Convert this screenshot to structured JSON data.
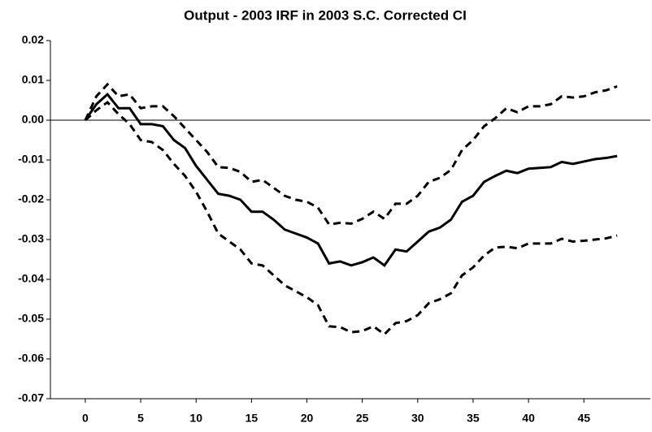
{
  "chart_data": {
    "type": "line",
    "title": "Output - 2003 IRF in 2003 S.C. Corrected CI",
    "x": [
      0,
      1,
      2,
      3,
      4,
      5,
      6,
      7,
      8,
      9,
      10,
      11,
      12,
      13,
      14,
      15,
      16,
      17,
      18,
      19,
      20,
      21,
      22,
      23,
      24,
      25,
      26,
      27,
      28,
      29,
      30,
      31,
      32,
      33,
      34,
      35,
      36,
      37,
      38,
      39,
      40,
      41,
      42,
      43,
      44,
      45,
      46,
      47,
      48
    ],
    "series": [
      {
        "color": "#000000",
        "dashed": false,
        "values": [
          0,
          0.004,
          0.0065,
          0.003,
          0.003,
          -0.001,
          -0.001,
          -0.0015,
          -0.005,
          -0.007,
          -0.0115,
          -0.015,
          -0.0185,
          -0.019,
          -0.02,
          -0.023,
          -0.023,
          -0.025,
          -0.0275,
          -0.0285,
          -0.0295,
          -0.031,
          -0.036,
          -0.0355,
          -0.0365,
          -0.0357,
          -0.0345,
          -0.0365,
          -0.0325,
          -0.033,
          -0.0305,
          -0.028,
          -0.027,
          -0.025,
          -0.0205,
          -0.019,
          -0.0155,
          -0.014,
          -0.0127,
          -0.0133,
          -0.0122,
          -0.012,
          -0.0118,
          -0.0105,
          -0.011,
          -0.0104,
          -0.0098,
          -0.0095,
          -0.009
        ]
      },
      {
        "color": "#000000",
        "dashed": true,
        "values": [
          0,
          0.006,
          0.009,
          0.006,
          0.0065,
          0.003,
          0.0035,
          0.0035,
          0.001,
          -0.002,
          -0.005,
          -0.008,
          -0.0118,
          -0.012,
          -0.013,
          -0.0155,
          -0.015,
          -0.017,
          -0.019,
          -0.02,
          -0.0205,
          -0.022,
          -0.0262,
          -0.0258,
          -0.026,
          -0.0248,
          -0.023,
          -0.0248,
          -0.021,
          -0.021,
          -0.019,
          -0.0155,
          -0.0145,
          -0.0125,
          -0.0075,
          -0.005,
          -0.0015,
          0.0005,
          0.003,
          0.002,
          0.0035,
          0.0035,
          0.004,
          0.006,
          0.0057,
          0.006,
          0.007,
          0.0075,
          0.0085
        ]
      },
      {
        "color": "#000000",
        "dashed": true,
        "values": [
          0,
          0.0025,
          0.0045,
          0.0015,
          -0.001,
          -0.005,
          -0.0055,
          -0.0075,
          -0.011,
          -0.014,
          -0.018,
          -0.023,
          -0.0285,
          -0.0305,
          -0.0325,
          -0.036,
          -0.0365,
          -0.039,
          -0.0415,
          -0.043,
          -0.0445,
          -0.0465,
          -0.0518,
          -0.052,
          -0.0533,
          -0.053,
          -0.0518,
          -0.0538,
          -0.051,
          -0.0505,
          -0.049,
          -0.046,
          -0.045,
          -0.0435,
          -0.039,
          -0.037,
          -0.034,
          -0.032,
          -0.0318,
          -0.0322,
          -0.031,
          -0.031,
          -0.031,
          -0.0298,
          -0.0305,
          -0.0303,
          -0.03,
          -0.0297,
          -0.029
        ]
      }
    ],
    "xlim": [
      -3.15,
      51
    ],
    "xticks": [
      0,
      5,
      10,
      15,
      20,
      25,
      30,
      35,
      40,
      45
    ],
    "ylim": [
      -0.07,
      0.02
    ],
    "yticks": [
      0.02,
      0.01,
      {
        "value": 0,
        "label": "0.00"
      },
      -0.01,
      -0.02,
      -0.03,
      -0.04,
      -0.05,
      -0.06,
      -0.07
    ]
  }
}
